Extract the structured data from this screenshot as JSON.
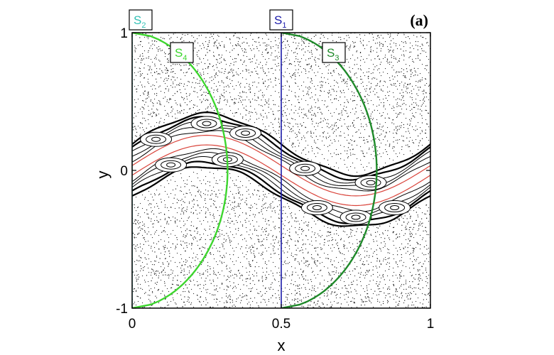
{
  "chart_data": {
    "type": "scatter",
    "panel_label": "(a)",
    "xlabel": "x",
    "ylabel": "y",
    "xlim": [
      0,
      1
    ],
    "ylim": [
      -1,
      1
    ],
    "x_ticks": [
      {
        "value": 0,
        "label": "0"
      },
      {
        "value": 0.5,
        "label": "0.5"
      },
      {
        "value": 1,
        "label": "1"
      }
    ],
    "y_ticks": [
      {
        "value": -1,
        "label": "-1"
      },
      {
        "value": 0,
        "label": "0"
      },
      {
        "value": 1,
        "label": "1"
      }
    ],
    "series": [
      {
        "name": "S",
        "sub": "1",
        "color": "#1a1aa8",
        "kind": "vertical",
        "x0": 0.5
      },
      {
        "name": "S",
        "sub": "2",
        "color": "#33c0b5",
        "kind": "vertical",
        "x0": 0.0
      },
      {
        "name": "S",
        "sub": "3",
        "color": "#1f8a2a",
        "kind": "curve",
        "x0": 0.5
      },
      {
        "name": "S",
        "sub": "4",
        "color": "#3dd62e",
        "kind": "curve",
        "x0": 0.0
      }
    ],
    "invariant_curve_color": "#d9433a",
    "chaotic_sea_points": 3200,
    "grid": false,
    "legend": "labels-in-plot"
  }
}
